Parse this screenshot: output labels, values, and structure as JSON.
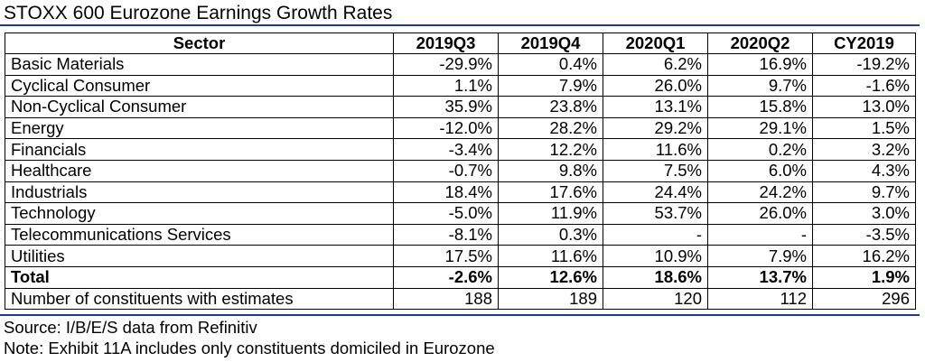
{
  "title": "STOXX 600 Eurozone Earnings Growth Rates",
  "accent_color": "#1f3a93",
  "table": {
    "headers": [
      "Sector",
      "2019Q3",
      "2019Q4",
      "2020Q1",
      "2020Q2",
      "CY2019"
    ],
    "rows": [
      [
        "Basic Materials",
        "-29.9%",
        "0.4%",
        "6.2%",
        "16.9%",
        "-19.2%"
      ],
      [
        "Cyclical Consumer",
        "1.1%",
        "7.9%",
        "26.0%",
        "9.7%",
        "-1.6%"
      ],
      [
        "Non-Cyclical Consumer",
        "35.9%",
        "23.8%",
        "13.1%",
        "15.8%",
        "13.0%"
      ],
      [
        "Energy",
        "-12.0%",
        "28.2%",
        "29.2%",
        "29.1%",
        "1.5%"
      ],
      [
        "Financials",
        "-3.4%",
        "12.2%",
        "11.6%",
        "0.2%",
        "3.2%"
      ],
      [
        "Healthcare",
        "-0.7%",
        "9.8%",
        "7.5%",
        "6.0%",
        "4.3%"
      ],
      [
        "Industrials",
        "18.4%",
        "17.6%",
        "24.4%",
        "24.2%",
        "9.7%"
      ],
      [
        "Technology",
        "-5.0%",
        "11.9%",
        "53.7%",
        "26.0%",
        "3.0%"
      ],
      [
        "Telecommunications Services",
        "-8.1%",
        "0.3%",
        "-",
        "-",
        "-3.5%"
      ],
      [
        "Utilities",
        "17.5%",
        "11.6%",
        "10.9%",
        "7.9%",
        "16.2%"
      ],
      [
        "Total",
        "-2.6%",
        "12.6%",
        "18.6%",
        "13.7%",
        "1.9%"
      ],
      [
        "Number of constituents with estimates",
        "188",
        "189",
        "120",
        "112",
        "296"
      ]
    ]
  },
  "footer": {
    "source": "Source: I/B/E/S data from Refinitiv",
    "note": "Note: Exhibit 11A includes only constituents domiciled in Eurozone"
  }
}
